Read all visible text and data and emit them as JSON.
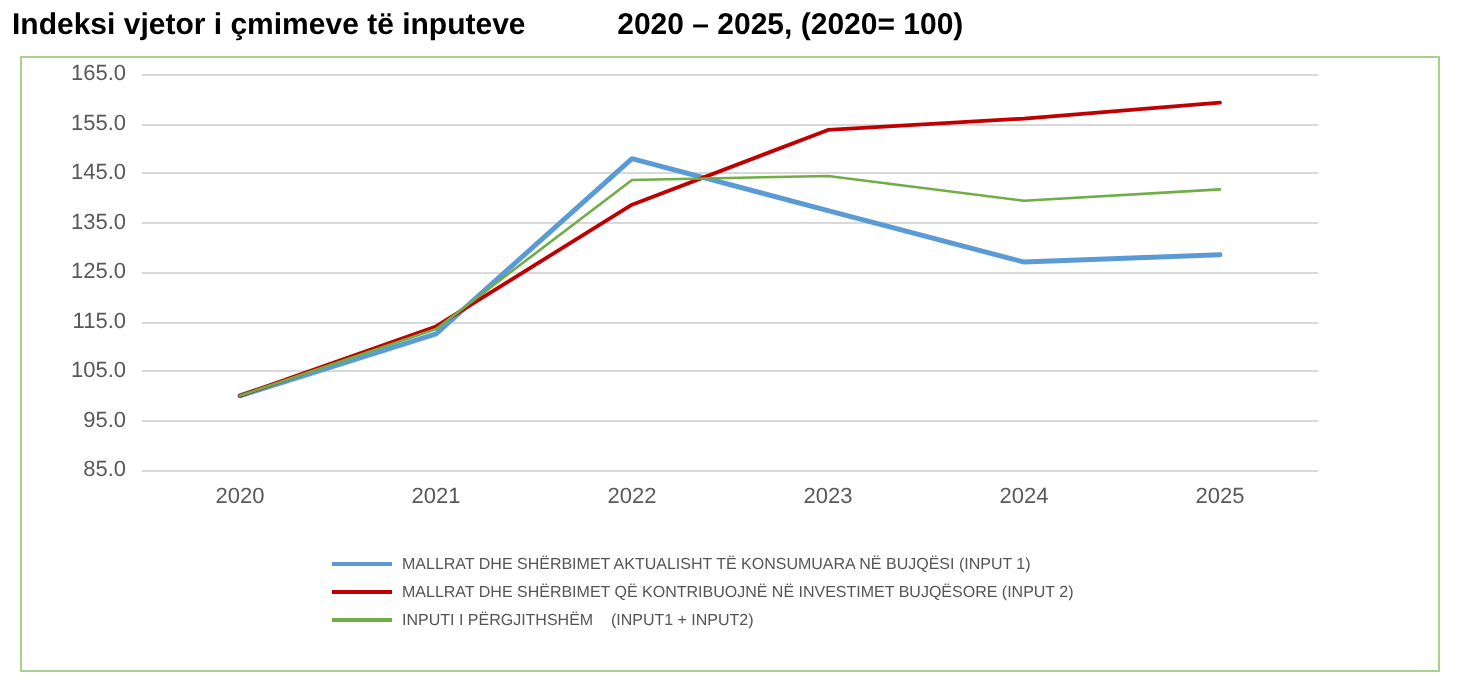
{
  "chart_data": {
    "type": "line",
    "title": "Indeksi vjetor i çmimeve të inputeve           2020 – 2025, (2020= 100)",
    "categories": [
      "2020",
      "2021",
      "2022",
      "2023",
      "2024",
      "2025"
    ],
    "series": [
      {
        "name": "MALLRAT DHE SHËRBIMET AKTUALISHT TË KONSUMUARA NË BUJQËSI (INPUT 1)",
        "color": "#5b9bd5",
        "values": [
          100,
          112.5,
          147.9,
          137.4,
          127,
          128.5
        ]
      },
      {
        "name": "MALLRAT DHE SHËRBIMET QË KONTRIBUOJNË NË INVESTIMET BUJQËSORE (INPUT 2)",
        "color": "#c00000",
        "values": [
          100,
          114,
          138.6,
          153.7,
          156,
          159.2
        ]
      },
      {
        "name": "INPUTI I PËRGJITHSHËM    (INPUT1 + INPUT2)",
        "color": "#70ad47",
        "values": [
          100,
          113.5,
          143.6,
          144.4,
          139.4,
          141.7
        ]
      }
    ],
    "ylim": [
      85,
      165
    ],
    "yticks": [
      {
        "value": 85,
        "label": "85.0"
      },
      {
        "value": 95,
        "label": "95.0"
      },
      {
        "value": 105,
        "label": "105.0"
      },
      {
        "value": 115,
        "label": "115.0"
      },
      {
        "value": 125,
        "label": "125.0"
      },
      {
        "value": 135,
        "label": "135.0"
      },
      {
        "value": 145,
        "label": "145.0"
      },
      {
        "value": 155,
        "label": "155.0"
      },
      {
        "value": 165,
        "label": "165.0"
      }
    ],
    "grid": "y",
    "legend": "bottom",
    "marker": "none",
    "line_style": "solid"
  }
}
